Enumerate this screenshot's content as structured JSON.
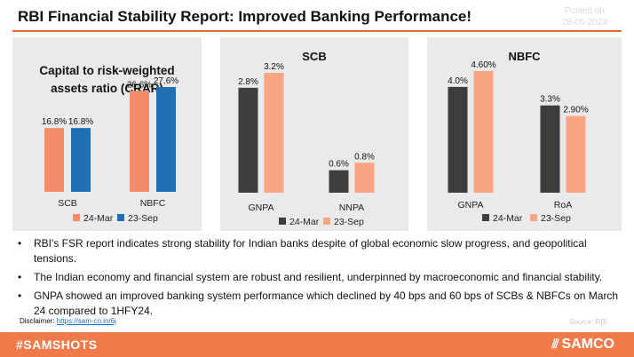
{
  "header": {
    "title": "RBI Financial Stability Report: Improved Banking Performance!",
    "posted_label": "Posted on",
    "posted_date": "28-06-2024"
  },
  "colors": {
    "accent": "#e8663b",
    "series_24mar_crar": "#f48c6c",
    "series_23sep_crar": "#1f6fb2",
    "series_24mar_dark": "#3d3d3d",
    "series_23sep_light": "#f9a482",
    "panel_bg": "#eaeaea",
    "footer_bg": "#f07a4a"
  },
  "chart_data": [
    {
      "id": "crar",
      "type": "bar",
      "title": "Capital to risk-weighted assets ratio (CRAR)",
      "categories": [
        "SCB",
        "NBFC"
      ],
      "series": [
        {
          "name": "24-Mar",
          "values": [
            16.8,
            26.6
          ],
          "labels": [
            "16.8%",
            "26.6%"
          ],
          "color": "#f48c6c"
        },
        {
          "name": "23-Sep",
          "values": [
            16.8,
            27.6
          ],
          "labels": [
            "16.8%",
            "27.6%"
          ],
          "color": "#1f6fb2"
        }
      ],
      "ylim": [
        0,
        27.6
      ],
      "legend": "bottom",
      "grid": false
    },
    {
      "id": "scb",
      "type": "bar",
      "title": "SCB",
      "categories": [
        "GNPA",
        "NNPA"
      ],
      "series": [
        {
          "name": "24-Mar",
          "values": [
            2.8,
            0.6
          ],
          "labels": [
            "2.8%",
            "0.6%"
          ],
          "color": "#3d3d3d"
        },
        {
          "name": "23-Sep",
          "values": [
            3.2,
            0.8
          ],
          "labels": [
            "3.2%",
            "0.8%"
          ],
          "color": "#f9a482"
        }
      ],
      "ylim": [
        0,
        3.2
      ],
      "legend": "bottom",
      "grid": false
    },
    {
      "id": "nbfc",
      "type": "bar",
      "title": "NBFC",
      "categories": [
        "GNPA",
        "RoA"
      ],
      "series": [
        {
          "name": "24-Mar",
          "values": [
            4.0,
            3.3
          ],
          "labels": [
            "4.0%",
            "3.3%"
          ],
          "color": "#3d3d3d"
        },
        {
          "name": "23-Sep",
          "values": [
            4.6,
            2.9
          ],
          "labels": [
            "4.60%",
            "2.90%"
          ],
          "color": "#f9a482"
        }
      ],
      "ylim": [
        0,
        4.6
      ],
      "legend": "bottom",
      "grid": false
    }
  ],
  "bullets": [
    "RBI's FSR report indicates strong stability for Indian banks despite of global economic slow progress, and geopolitical tensions.",
    "The Indian economy and financial system are robust and resilient, underpinned by macroeconomic and financial stability.",
    "GNPA showed an improved banking system performance which declined by 40 bps and 60 bps of SCBs & NBFCs on March 24 compared to 1HFY24."
  ],
  "bullet_marker": "•",
  "disclaimer": {
    "label": "Disclaimer: ",
    "link_text": "https://sam-co.in/6j"
  },
  "source": "Source: RBI",
  "footer": {
    "hashtag": "#SAMSHOTS",
    "brand": "SAMCO",
    "brand_icon": "samco-logo-icon"
  }
}
